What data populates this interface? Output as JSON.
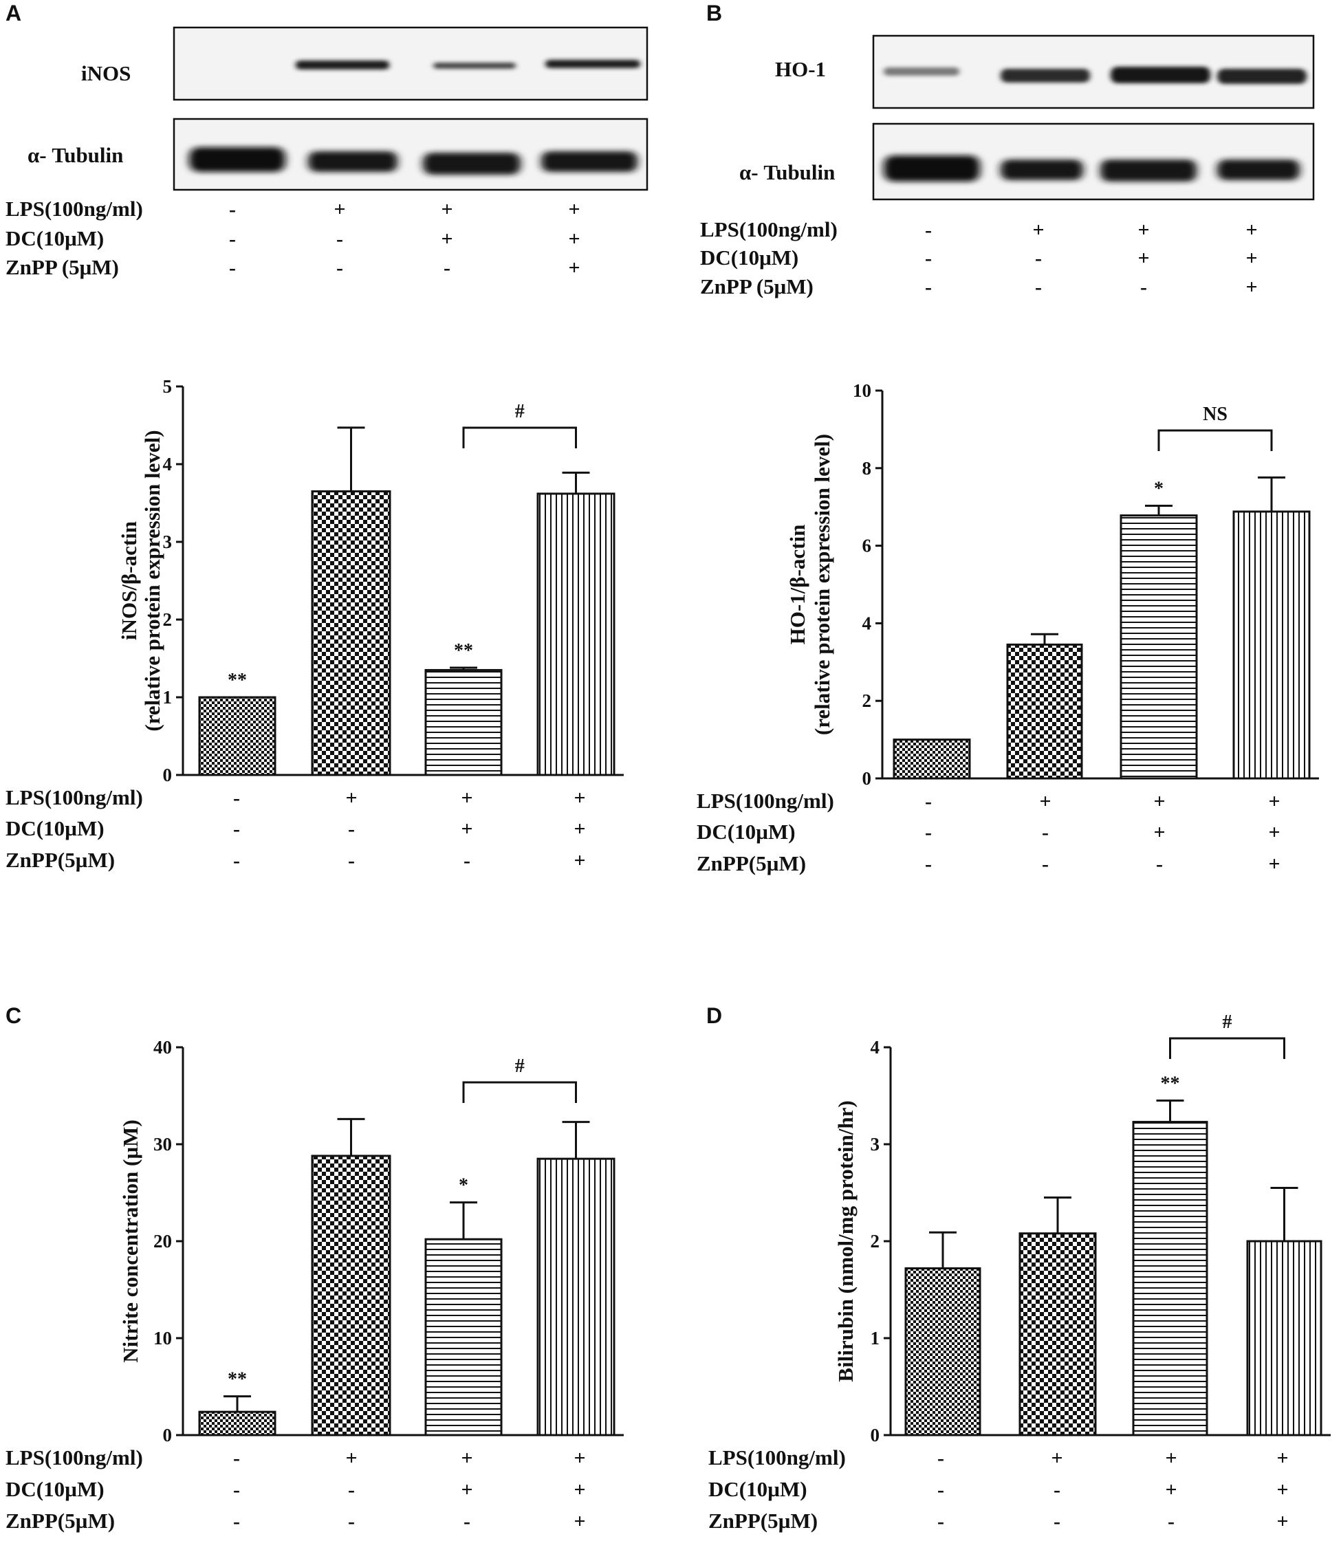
{
  "panels": {
    "A": "A",
    "B": "B",
    "C": "C",
    "D": "D"
  },
  "condition_labels": {
    "lps": "LPS(100ng/ml)",
    "dc_blot": "DC(10μM)",
    "znpp_blot": "ZnPP (5μM)",
    "dc_chart": "DC(10µM)",
    "znpp_chart": "ZnPP(5µM)"
  },
  "condition_signs": {
    "lps": [
      "-",
      "+",
      "+",
      "+"
    ],
    "dc": [
      "-",
      "-",
      "+",
      "+"
    ],
    "znpp": [
      "-",
      "-",
      "-",
      "+"
    ]
  },
  "blots": {
    "A": {
      "target": "iNOS",
      "loading": "α- Tubulin"
    },
    "B": {
      "target": "HO-1",
      "loading": "α- Tubulin"
    }
  },
  "chart_data": [
    {
      "panel": "A",
      "type": "bar",
      "categories": [
        "1",
        "2",
        "3",
        "4"
      ],
      "values": [
        1.0,
        3.65,
        1.35,
        3.62
      ],
      "errors": [
        0,
        0.82,
        0.03,
        0.27
      ],
      "markers": [
        "**",
        "",
        "**",
        ""
      ],
      "bracket": {
        "from": 2,
        "to": 3,
        "label": "#"
      },
      "ylabel_line1": "iNOS/β-actin",
      "ylabel_line2": "(relative protein expression level)",
      "ylim": [
        0,
        5
      ],
      "yticks": [
        0,
        1,
        2,
        3,
        4,
        5
      ],
      "patterns": [
        "fine-check",
        "coarse-check",
        "horizontal",
        "vertical"
      ]
    },
    {
      "panel": "B",
      "type": "bar",
      "categories": [
        "1",
        "2",
        "3",
        "4"
      ],
      "values": [
        1.0,
        3.45,
        6.78,
        6.88
      ],
      "errors": [
        0,
        0.27,
        0.25,
        0.88
      ],
      "markers": [
        "",
        "",
        "*",
        ""
      ],
      "bracket": {
        "from": 2,
        "to": 3,
        "label": "NS"
      },
      "ylabel_line1": "HO-1/β-actin",
      "ylabel_line2": "(relative protein expression level)",
      "ylim": [
        0,
        10
      ],
      "yticks": [
        0,
        2,
        4,
        6,
        8,
        10
      ],
      "patterns": [
        "fine-check",
        "coarse-check",
        "horizontal",
        "vertical"
      ]
    },
    {
      "panel": "C",
      "type": "bar",
      "categories": [
        "1",
        "2",
        "3",
        "4"
      ],
      "values": [
        2.4,
        28.8,
        20.2,
        28.5
      ],
      "errors": [
        1.6,
        3.8,
        3.8,
        3.8
      ],
      "markers": [
        "**",
        "",
        "*",
        ""
      ],
      "bracket": {
        "from": 2,
        "to": 3,
        "label": "#"
      },
      "ylabel_line1": "Nitrite concentration (µM)",
      "ylabel_line2": "",
      "ylim": [
        0,
        40
      ],
      "yticks": [
        0,
        10,
        20,
        30,
        40
      ],
      "patterns": [
        "fine-check",
        "coarse-check",
        "horizontal",
        "vertical"
      ]
    },
    {
      "panel": "D",
      "type": "bar",
      "categories": [
        "1",
        "2",
        "3",
        "4"
      ],
      "values": [
        1.72,
        2.08,
        3.23,
        2.0
      ],
      "errors": [
        0.37,
        0.37,
        0.22,
        0.55
      ],
      "markers": [
        "",
        "",
        "**",
        ""
      ],
      "bracket": {
        "from": 2,
        "to": 3,
        "label": "#"
      },
      "ylabel_line1": "Bilirubin (nmol/mg protein/hr)",
      "ylabel_line2": "",
      "ylim": [
        0,
        4
      ],
      "yticks": [
        0,
        1,
        2,
        3,
        4
      ],
      "patterns": [
        "fine-check",
        "coarse-check",
        "horizontal",
        "vertical"
      ]
    }
  ]
}
